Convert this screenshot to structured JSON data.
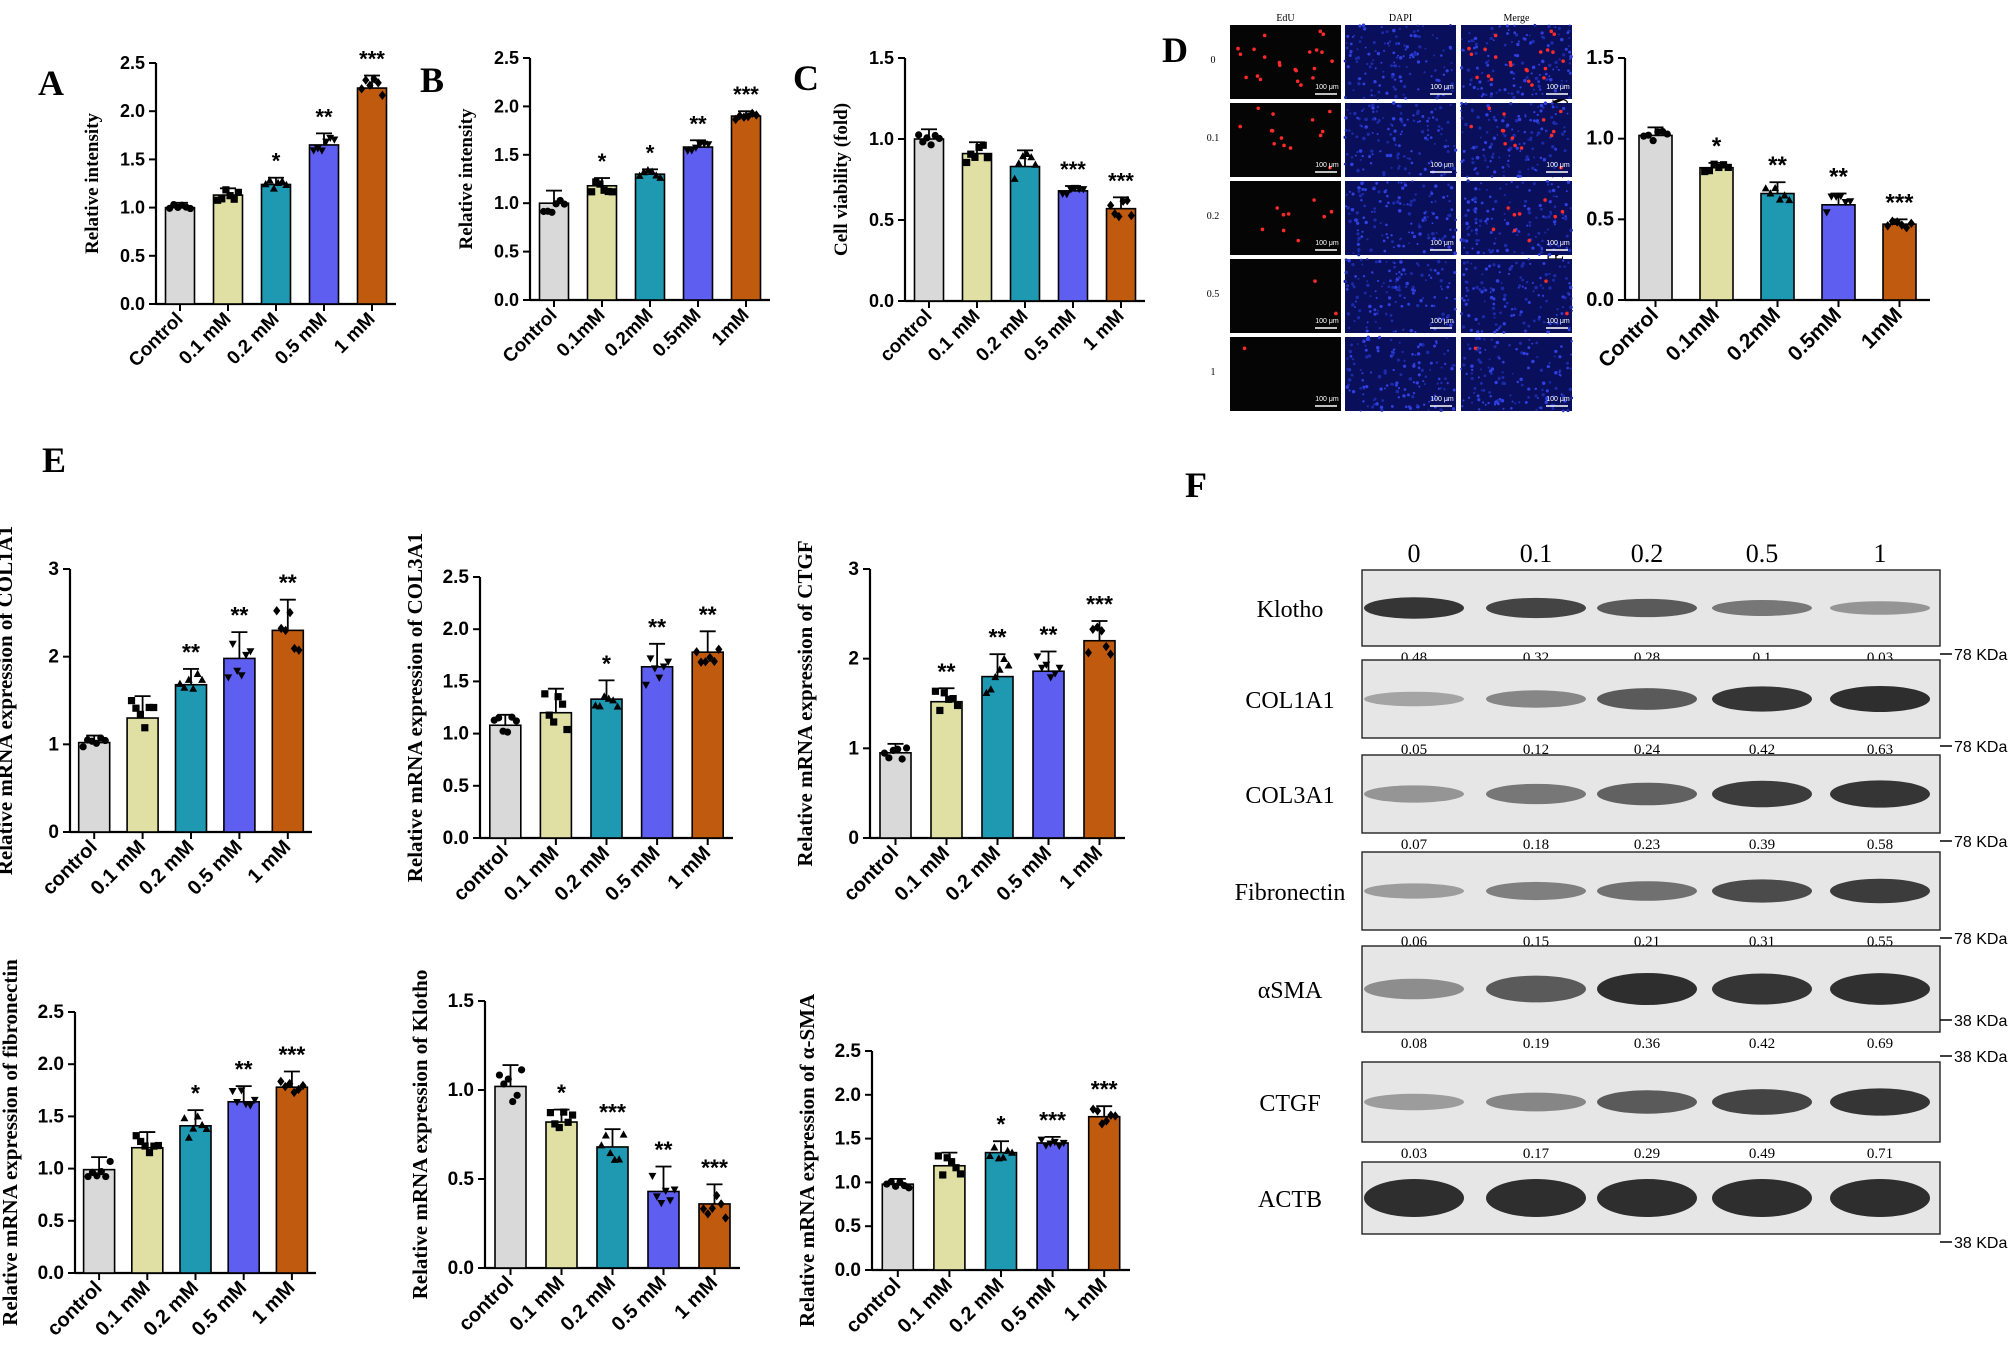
{
  "colors": {
    "control": "#d9d9d9",
    "c01": "#e0e0a4",
    "c02": "#1f98b1",
    "c05": "#5e5ef0",
    "c1": "#c05a0f",
    "axis": "#000000"
  },
  "panel_labels": [
    "A",
    "B",
    "C",
    "D",
    "E",
    "F"
  ],
  "chart_data": [
    {
      "id": "A",
      "type": "bar",
      "title": "",
      "xlabel": "",
      "ylabel": "Relative intensity",
      "ylim": [
        0,
        2.5
      ],
      "yticks": [
        "0.0",
        "0.5",
        "1.0",
        "1.5",
        "2.0",
        "2.5"
      ],
      "categories": [
        "Control",
        "0.1 mM",
        "0.2 mM",
        "0.5 mM",
        "1 mM"
      ],
      "values": [
        1.0,
        1.13,
        1.24,
        1.65,
        2.24
      ],
      "errors": [
        0.05,
        0.07,
        0.07,
        0.12,
        0.13
      ],
      "significance": [
        "",
        "",
        "*",
        "**",
        "***"
      ],
      "grid": false,
      "legend": "none"
    },
    {
      "id": "B",
      "type": "bar",
      "title": "",
      "xlabel": "",
      "ylabel": "Relative intensity",
      "ylim": [
        0,
        2.5
      ],
      "yticks": [
        "0.0",
        "0.5",
        "1.0",
        "1.5",
        "2.0",
        "2.5"
      ],
      "categories": [
        "Control",
        "0.1mM",
        "0.2mM",
        "0.5mM",
        "1mM"
      ],
      "values": [
        1.0,
        1.18,
        1.3,
        1.58,
        1.9
      ],
      "errors": [
        0.13,
        0.08,
        0.05,
        0.07,
        0.05
      ],
      "significance": [
        "",
        "*",
        "*",
        "**",
        "***"
      ],
      "grid": false,
      "legend": "none"
    },
    {
      "id": "C",
      "type": "bar",
      "title": "",
      "xlabel": "",
      "ylabel": "Cell viability (fold)",
      "ylim": [
        0,
        1.5
      ],
      "yticks": [
        "0.0",
        "0.5",
        "1.0",
        "1.5"
      ],
      "categories": [
        "control",
        "0.1 mM",
        "0.2 mM",
        "0.5 mM",
        "1 mM"
      ],
      "values": [
        1.0,
        0.91,
        0.83,
        0.68,
        0.57
      ],
      "errors": [
        0.06,
        0.07,
        0.1,
        0.03,
        0.07
      ],
      "significance": [
        "",
        "",
        "",
        "***",
        "***"
      ],
      "grid": false,
      "legend": "none"
    },
    {
      "id": "D",
      "type": "bar",
      "title": "",
      "xlabel": "",
      "ylabel": "Relative intensity",
      "ylim": [
        0,
        1.5
      ],
      "yticks": [
        "0.0",
        "0.5",
        "1.0",
        "1.5"
      ],
      "categories": [
        "Control",
        "0.1mM",
        "0.2mM",
        "0.5mM",
        "1mM"
      ],
      "values": [
        1.02,
        0.82,
        0.66,
        0.59,
        0.47
      ],
      "errors": [
        0.05,
        0.03,
        0.07,
        0.07,
        0.03
      ],
      "significance": [
        "",
        "*",
        "**",
        "**",
        "***"
      ],
      "grid": false,
      "legend": "none"
    },
    {
      "id": "E1",
      "type": "bar",
      "title": "",
      "xlabel": "",
      "ylabel": "Relative mRNA expression of COL1A1",
      "ylim": [
        0,
        3
      ],
      "yticks": [
        "0",
        "1",
        "2",
        "3"
      ],
      "categories": [
        "control",
        "0.1 mM",
        "0.2 mM",
        "0.5 mM",
        "1 mM"
      ],
      "values": [
        1.02,
        1.3,
        1.68,
        1.98,
        2.3
      ],
      "errors": [
        0.08,
        0.25,
        0.18,
        0.3,
        0.35
      ],
      "significance": [
        "",
        "",
        "**",
        "**",
        "**"
      ],
      "grid": false,
      "legend": "none"
    },
    {
      "id": "E2",
      "type": "bar",
      "title": "",
      "xlabel": "",
      "ylabel": "Relative mRNA expression of COL3A1",
      "ylim": [
        0,
        2.5
      ],
      "yticks": [
        "0.0",
        "0.5",
        "1.0",
        "1.5",
        "2.0",
        "2.5"
      ],
      "categories": [
        "control",
        "0.1 mM",
        "0.2 mM",
        "0.5 mM",
        "1 mM"
      ],
      "values": [
        1.08,
        1.2,
        1.33,
        1.64,
        1.78
      ],
      "errors": [
        0.1,
        0.23,
        0.18,
        0.22,
        0.2
      ],
      "significance": [
        "",
        "",
        "*",
        "**",
        "**"
      ],
      "grid": false,
      "legend": "none"
    },
    {
      "id": "E3",
      "type": "bar",
      "title": "",
      "xlabel": "",
      "ylabel": "Relative mRNA expression of CTGF",
      "ylim": [
        0,
        3
      ],
      "yticks": [
        "0",
        "1",
        "2",
        "3"
      ],
      "categories": [
        "control",
        "0.1 mM",
        "0.2 mM",
        "0.5 mM",
        "1 mM"
      ],
      "values": [
        0.95,
        1.52,
        1.8,
        1.86,
        2.2
      ],
      "errors": [
        0.1,
        0.15,
        0.25,
        0.22,
        0.22
      ],
      "significance": [
        "",
        "**",
        "**",
        "**",
        "***"
      ],
      "grid": false,
      "legend": "none"
    },
    {
      "id": "E4",
      "type": "bar",
      "title": "",
      "xlabel": "",
      "ylabel": "Relative mRNA expression of fibronectin",
      "ylim": [
        0,
        2.5
      ],
      "yticks": [
        "0.0",
        "0.5",
        "1.0",
        "1.5",
        "2.0",
        "2.5"
      ],
      "categories": [
        "control",
        "0.1 mM",
        "0.2 mM",
        "0.5 mM",
        "1 mM"
      ],
      "values": [
        0.99,
        1.2,
        1.41,
        1.64,
        1.78
      ],
      "errors": [
        0.12,
        0.15,
        0.15,
        0.15,
        0.15
      ],
      "significance": [
        "",
        "",
        "*",
        "**",
        "***"
      ],
      "grid": false,
      "legend": "none"
    },
    {
      "id": "E5",
      "type": "bar",
      "title": "",
      "xlabel": "",
      "ylabel": "Relative mRNA expression of Klotho",
      "ylim": [
        0,
        1.5
      ],
      "yticks": [
        "0.0",
        "0.5",
        "1.0",
        "1.5"
      ],
      "categories": [
        "control",
        "0.1 mM",
        "0.2 mM",
        "0.5 mM",
        "1 mM"
      ],
      "values": [
        1.02,
        0.82,
        0.68,
        0.43,
        0.36
      ],
      "errors": [
        0.12,
        0.07,
        0.1,
        0.14,
        0.11
      ],
      "significance": [
        "",
        "*",
        "***",
        "**",
        "***"
      ],
      "grid": false,
      "legend": "none"
    },
    {
      "id": "E6",
      "type": "bar",
      "title": "",
      "xlabel": "",
      "ylabel": "Relative mRNA expression of α-SMA",
      "ylim": [
        0,
        2.5
      ],
      "yticks": [
        "0.0",
        "0.5",
        "1.0",
        "1.5",
        "2.0",
        "2.5"
      ],
      "categories": [
        "control",
        "0.1 mM",
        "0.2 mM",
        "0.5 mM",
        "1 mM"
      ],
      "values": [
        0.98,
        1.19,
        1.34,
        1.45,
        1.75
      ],
      "errors": [
        0.06,
        0.15,
        0.13,
        0.07,
        0.12
      ],
      "significance": [
        "",
        "",
        "*",
        "***",
        "***"
      ],
      "grid": false,
      "legend": "none"
    }
  ],
  "edu_panel": {
    "column_headers": [
      "EdU",
      "DAPI",
      "Merge"
    ],
    "row_labels": [
      "0",
      "0.1",
      "0.2",
      "0.5",
      "1"
    ],
    "scale_bar": "100 μm",
    "edu_dot_counts": [
      22,
      14,
      9,
      2,
      1
    ]
  },
  "western_blot": {
    "lane_labels": [
      "0",
      "0.1",
      "0.2",
      "0.5",
      "1"
    ],
    "bands": [
      {
        "name": "Klotho",
        "quant": [
          "0.48",
          "0.32",
          "0.28",
          "0.1",
          "0.03"
        ],
        "marker": "78 KDa"
      },
      {
        "name": "COL1A1",
        "quant": [
          "0.05",
          "0.12",
          "0.24",
          "0.42",
          "0.63"
        ],
        "marker": "78 KDa"
      },
      {
        "name": "COL3A1",
        "quant": [
          "0.07",
          "0.18",
          "0.23",
          "0.39",
          "0.58"
        ],
        "marker": "78 KDa"
      },
      {
        "name": "Fibronectin",
        "quant": [
          "0.06",
          "0.15",
          "0.21",
          "0.31",
          "0.55"
        ],
        "marker": "78 KDa"
      },
      {
        "name": "αSMA",
        "quant": [
          "0.08",
          "0.19",
          "0.36",
          "0.42",
          "0.69"
        ],
        "marker": "38 KDa"
      },
      {
        "name": "CTGF",
        "quant": [
          "0.03",
          "0.17",
          "0.29",
          "0.49",
          "0.71"
        ],
        "marker": "38 KDa"
      },
      {
        "name": "ACTB",
        "quant": [],
        "marker": "38 KDa"
      }
    ]
  }
}
